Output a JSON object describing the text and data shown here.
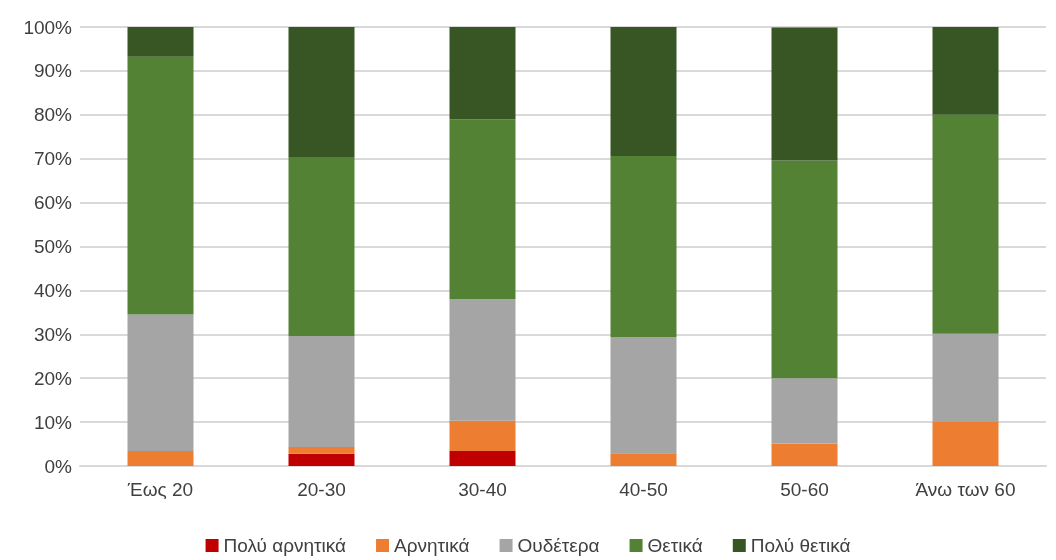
{
  "chart_data": {
    "type": "bar",
    "stacked": true,
    "categories": [
      "Έως 20",
      "20-30",
      "30-40",
      "40-50",
      "50-60",
      "Άνω των 60"
    ],
    "series": [
      {
        "name": "Πολύ αρνητικά",
        "color": "#c00000",
        "values": [
          0,
          2.8,
          3.4,
          0,
          0,
          0
        ]
      },
      {
        "name": "Αρνητικά",
        "color": "#ed7d31",
        "values": [
          3.4,
          1.5,
          6.9,
          2.9,
          5.1,
          10.0
        ]
      },
      {
        "name": "Ουδέτερα",
        "color": "#a5a5a5",
        "values": [
          31.1,
          25.3,
          27.7,
          26.5,
          14.9,
          20.1
        ]
      },
      {
        "name": "Θετικά",
        "color": "#548235",
        "values": [
          58.7,
          40.8,
          41.0,
          41.2,
          49.6,
          49.9
        ]
      },
      {
        "name": "Πολύ θετικά",
        "color": "#375623",
        "values": [
          6.8,
          29.6,
          21.0,
          29.4,
          30.3,
          20.0
        ]
      }
    ],
    "ylim": [
      0,
      100
    ],
    "yticks": [
      {
        "value": 0,
        "label": "0%"
      },
      {
        "value": 10,
        "label": "10%"
      },
      {
        "value": 20,
        "label": "20%"
      },
      {
        "value": 30,
        "label": "30%"
      },
      {
        "value": 40,
        "label": "40%"
      },
      {
        "value": 50,
        "label": "50%"
      },
      {
        "value": 60,
        "label": "60%"
      },
      {
        "value": 70,
        "label": "70%"
      },
      {
        "value": 80,
        "label": "80%"
      },
      {
        "value": 90,
        "label": "90%"
      },
      {
        "value": 100,
        "label": "100%"
      }
    ],
    "grid": "y",
    "legend": "bottom"
  }
}
